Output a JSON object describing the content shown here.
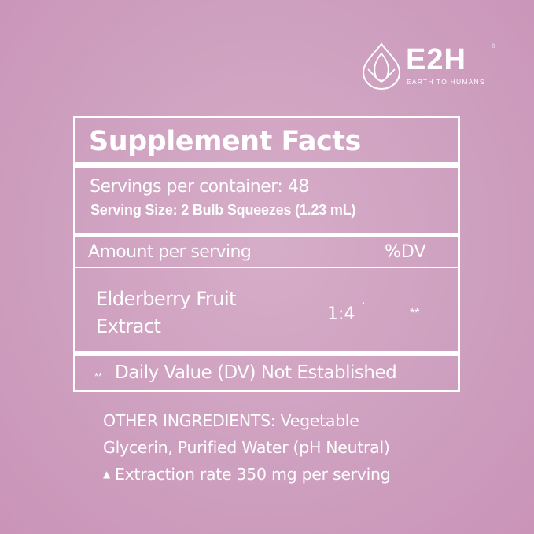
{
  "brand": {
    "name": "E2H",
    "tagline": "EARTH TO HUMANS",
    "registered": "®"
  },
  "colors": {
    "background": "#cfa1c0",
    "foreground": "#ffffff"
  },
  "panel": {
    "title": "Supplement Facts",
    "servings_per_container": "Servings per container: 48",
    "serving_size": "Serving Size: 2 Bulb Squeezes (1.23 mL)",
    "amount_header": "Amount per serving",
    "dv_header": "%DV",
    "ingredient": {
      "name_line1": "Elderberry Fruit",
      "name_line2": "Extract",
      "amount": "1:4",
      "amount_mark": "▲",
      "dv": "**"
    },
    "footnote_mark": "**",
    "footnote": "Daily Value (DV) Not Established"
  },
  "other_ingredients": {
    "line1": "OTHER INGREDIENTS: Vegetable",
    "line2": "Glycerin, Purified Water (pH Neutral)",
    "note_mark": "▲",
    "note": "Extraction rate 350 mg per serving"
  }
}
